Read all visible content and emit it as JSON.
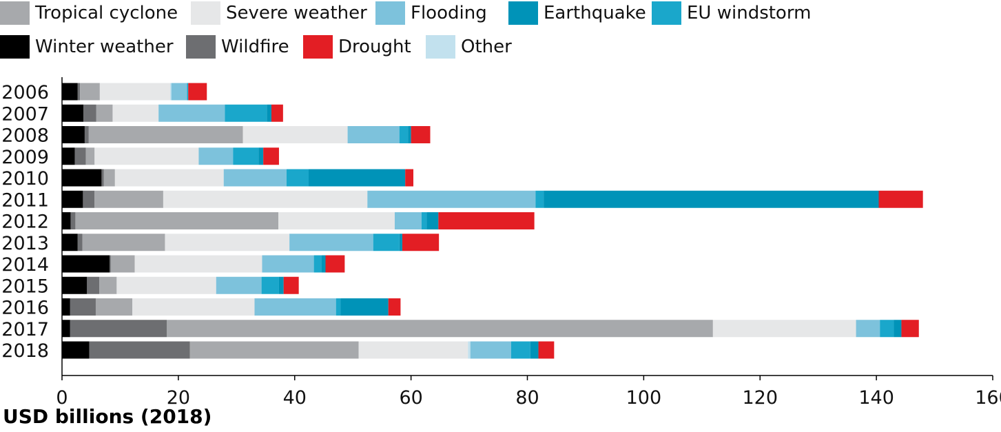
{
  "chart_data": {
    "type": "bar",
    "orientation": "horizontal",
    "stacked": true,
    "xlabel": "USD billions (2018)",
    "xlim": [
      0,
      160
    ],
    "xticks": [
      0,
      20,
      40,
      60,
      80,
      100,
      120,
      140,
      160
    ],
    "legend_position": "top",
    "categories": [
      "2006",
      "2007",
      "2008",
      "2009",
      "2010",
      "2011",
      "2012",
      "2013",
      "2014",
      "2015",
      "2016",
      "2017",
      "2018"
    ],
    "legend_order": [
      "Tropical cyclone",
      "Severe weather",
      "Flooding",
      "Earthquake",
      "EU windstorm",
      "Winter weather",
      "Wildfire",
      "Drought",
      "Other"
    ],
    "series": [
      {
        "name": "Winter weather",
        "color": "#000000",
        "values": [
          2.7,
          3.7,
          3.9,
          2.2,
          6.8,
          3.6,
          1.5,
          2.7,
          8.2,
          4.3,
          1.4,
          1.4,
          4.7
        ]
      },
      {
        "name": "Wildfire",
        "color": "#6d6e71",
        "values": [
          0.4,
          2.2,
          0.7,
          1.9,
          0.4,
          2.0,
          0.8,
          0.8,
          0.2,
          2.1,
          4.4,
          16.6,
          17.3
        ]
      },
      {
        "name": "Tropical cyclone",
        "color": "#a7a9ac",
        "values": [
          3.4,
          2.8,
          26.5,
          1.5,
          1.9,
          11.8,
          34.9,
          14.2,
          4.1,
          3.0,
          6.3,
          93.9,
          29.0
        ]
      },
      {
        "name": "Severe weather",
        "color": "#e6e7e8",
        "values": [
          12.1,
          7.9,
          18.0,
          17.9,
          18.7,
          35.1,
          20.0,
          21.4,
          21.9,
          17.1,
          21.0,
          24.6,
          18.8
        ]
      },
      {
        "name": "Other",
        "color": "#c2e1ee",
        "values": [
          0.2,
          0,
          0,
          0,
          0,
          0,
          0,
          0,
          0,
          0,
          0,
          0,
          0.4
        ]
      },
      {
        "name": "Flooding",
        "color": "#7dc2dc",
        "values": [
          2.7,
          11.4,
          8.9,
          5.9,
          10.8,
          28.9,
          4.6,
          14.4,
          8.9,
          7.8,
          14.0,
          4.1,
          7.0
        ]
      },
      {
        "name": "EU windstorm",
        "color": "#1aa7cb",
        "values": [
          0.2,
          7.2,
          1.5,
          4.4,
          3.8,
          1.4,
          0.9,
          4.5,
          1.3,
          3.0,
          0.8,
          2.4,
          3.3
        ]
      },
      {
        "name": "Earthquake",
        "color": "#0093b8",
        "values": [
          0,
          0.8,
          0.5,
          0.8,
          16.6,
          57.6,
          2.0,
          0.5,
          0.7,
          0.8,
          8.2,
          1.3,
          1.4
        ]
      },
      {
        "name": "Drought",
        "color": "#e31e24",
        "values": [
          3.2,
          2.0,
          3.3,
          2.7,
          1.4,
          7.6,
          16.5,
          6.3,
          3.3,
          2.6,
          2.1,
          3.0,
          2.7
        ]
      }
    ]
  }
}
